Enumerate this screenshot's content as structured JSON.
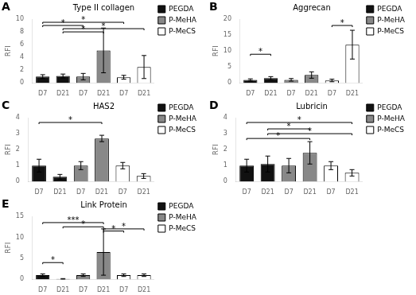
{
  "chart_data": [
    {
      "type": "bar",
      "panel": "A",
      "title": "Type II collagen",
      "ylabel": "RFI",
      "categories": [
        "D7",
        "D21",
        "D7",
        "D21",
        "D7",
        "D21"
      ],
      "series": [
        {
          "name": "PEGDA",
          "color": "#111111",
          "values": [
            1.0,
            1.1,
            null,
            null,
            null,
            null
          ],
          "errors": [
            0.3,
            0.3,
            null,
            null,
            null,
            null
          ]
        },
        {
          "name": "P-MeHA",
          "color": "#888888",
          "values": [
            null,
            null,
            1.0,
            5.1,
            null,
            null
          ],
          "errors": [
            null,
            null,
            0.5,
            3.5,
            null,
            null
          ]
        },
        {
          "name": "P-MeCS",
          "color": "#ffffff",
          "values": [
            null,
            null,
            null,
            null,
            0.9,
            2.5
          ],
          "errors": [
            null,
            null,
            null,
            null,
            0.3,
            1.8
          ]
        }
      ],
      "ylim": [
        0,
        10
      ],
      "yticks": [
        0,
        2,
        4,
        6,
        8,
        10
      ],
      "annotations": [
        {
          "x1": 0,
          "x2": 2,
          "y": 9.0,
          "label": "*"
        },
        {
          "x1": 0,
          "x2": 4,
          "y": 9.5,
          "label": "*"
        },
        {
          "x1": 1,
          "x2": 3,
          "y": 8.0,
          "label": "*"
        },
        {
          "x1": 1,
          "x2": 5,
          "y": 8.5,
          "label": "*"
        }
      ],
      "legend": "right",
      "grid": false
    },
    {
      "type": "bar",
      "panel": "B",
      "title": "Aggrecan",
      "ylabel": "RFI",
      "categories": [
        "D7",
        "D21",
        "D7",
        "D21",
        "D7",
        "D21"
      ],
      "series": [
        {
          "name": "PEGDA",
          "color": "#111111",
          "values": [
            1.0,
            1.5,
            null,
            null,
            null,
            null
          ],
          "errors": [
            0.3,
            0.5,
            null,
            null,
            null,
            null
          ]
        },
        {
          "name": "P-MeHA",
          "color": "#888888",
          "values": [
            null,
            null,
            1.0,
            2.5,
            null,
            null
          ],
          "errors": [
            null,
            null,
            0.4,
            1.0,
            null,
            null
          ]
        },
        {
          "name": "P-MeCS",
          "color": "#ffffff",
          "values": [
            null,
            null,
            null,
            null,
            0.8,
            12.0
          ],
          "errors": [
            null,
            null,
            null,
            null,
            0.4,
            4.5
          ]
        }
      ],
      "ylim": [
        0,
        20
      ],
      "yticks": [
        0,
        5,
        10,
        15,
        20
      ],
      "annotations": [
        {
          "x1": 0,
          "x2": 1,
          "y": 9.0,
          "label": "*"
        },
        {
          "x1": 4,
          "x2": 5,
          "y": 18.0,
          "label": "*"
        }
      ],
      "legend": "right",
      "grid": false
    },
    {
      "type": "bar",
      "panel": "C",
      "title": "HAS2",
      "ylabel": "RFI",
      "categories": [
        "D7",
        "D21",
        "D7",
        "D21",
        "D7",
        "D21"
      ],
      "series": [
        {
          "name": "PEGDA",
          "color": "#111111",
          "values": [
            1.0,
            0.3,
            null,
            null,
            null,
            null
          ],
          "errors": [
            0.4,
            0.15,
            null,
            null,
            null,
            null
          ]
        },
        {
          "name": "P-MeHA",
          "color": "#888888",
          "values": [
            null,
            null,
            1.0,
            2.7,
            null,
            null
          ],
          "errors": [
            null,
            null,
            0.25,
            0.2,
            null,
            null
          ]
        },
        {
          "name": "P-MeCS",
          "color": "#ffffff",
          "values": [
            null,
            null,
            null,
            null,
            1.0,
            0.35
          ],
          "errors": [
            null,
            null,
            null,
            null,
            0.2,
            0.15
          ]
        }
      ],
      "ylim": [
        0,
        4
      ],
      "yticks": [
        0,
        1,
        2,
        3,
        4
      ],
      "annotations": [
        {
          "x1": 0,
          "x2": 3,
          "y": 3.7,
          "label": "*"
        }
      ],
      "legend": "right",
      "grid": false
    },
    {
      "type": "bar",
      "panel": "D",
      "title": "Lubricin",
      "ylabel": "RFI",
      "categories": [
        "D7",
        "D21",
        "D7",
        "D21",
        "D7",
        "D21"
      ],
      "series": [
        {
          "name": "PEGDA",
          "color": "#111111",
          "values": [
            1.0,
            1.1,
            null,
            null,
            null,
            null
          ],
          "errors": [
            0.4,
            0.5,
            null,
            null,
            null,
            null
          ]
        },
        {
          "name": "P-MeHA",
          "color": "#888888",
          "values": [
            null,
            null,
            1.0,
            1.8,
            null,
            null
          ],
          "errors": [
            null,
            null,
            0.45,
            0.7,
            null,
            null
          ]
        },
        {
          "name": "P-MeCS",
          "color": "#ffffff",
          "values": [
            null,
            null,
            null,
            null,
            1.0,
            0.55
          ],
          "errors": [
            null,
            null,
            null,
            null,
            0.25,
            0.2
          ]
        }
      ],
      "ylim": [
        0,
        4
      ],
      "yticks": [
        0,
        1,
        2,
        3,
        4
      ],
      "annotations": [
        {
          "x1": 0,
          "x2": 5,
          "y": 3.7,
          "label": "*"
        },
        {
          "x1": 1,
          "x2": 3,
          "y": 3.3,
          "label": "*"
        },
        {
          "x1": 1,
          "x2": 5,
          "y": 3.0,
          "label": "*"
        },
        {
          "x1": 0,
          "x2": 3,
          "y": 2.7,
          "label": "*"
        }
      ],
      "legend": "right",
      "grid": false
    },
    {
      "type": "bar",
      "panel": "E",
      "title": "Link Protein",
      "ylabel": "RFI",
      "categories": [
        "D7",
        "D21",
        "D7",
        "D21",
        "D7",
        "D21"
      ],
      "series": [
        {
          "name": "PEGDA",
          "color": "#111111",
          "values": [
            1.0,
            0.1,
            null,
            null,
            null,
            null
          ],
          "errors": [
            0.3,
            0.1,
            null,
            null,
            null,
            null
          ]
        },
        {
          "name": "P-MeHA",
          "color": "#888888",
          "values": [
            null,
            null,
            1.0,
            6.5,
            null,
            null
          ],
          "errors": [
            null,
            null,
            0.3,
            5.5,
            null,
            null
          ]
        },
        {
          "name": "P-MeCS",
          "color": "#ffffff",
          "values": [
            null,
            null,
            null,
            null,
            1.0,
            1.0
          ],
          "errors": [
            null,
            null,
            null,
            null,
            0.3,
            0.3
          ]
        }
      ],
      "ylim": [
        0,
        15
      ],
      "yticks": [
        0,
        5,
        10,
        15
      ],
      "annotations": [
        {
          "x1": 0,
          "x2": 1,
          "y": 4.0,
          "label": "*"
        },
        {
          "x1": 0,
          "x2": 3,
          "y": 13.5,
          "label": "***"
        },
        {
          "x1": 1,
          "x2": 3,
          "y": 12.5,
          "label": "*"
        },
        {
          "x1": 3,
          "x2": 4,
          "y": 11.5,
          "label": "*"
        },
        {
          "x1": 3,
          "x2": 5,
          "y": 12.0,
          "label": "*"
        }
      ],
      "legend": "right",
      "grid": false
    }
  ]
}
